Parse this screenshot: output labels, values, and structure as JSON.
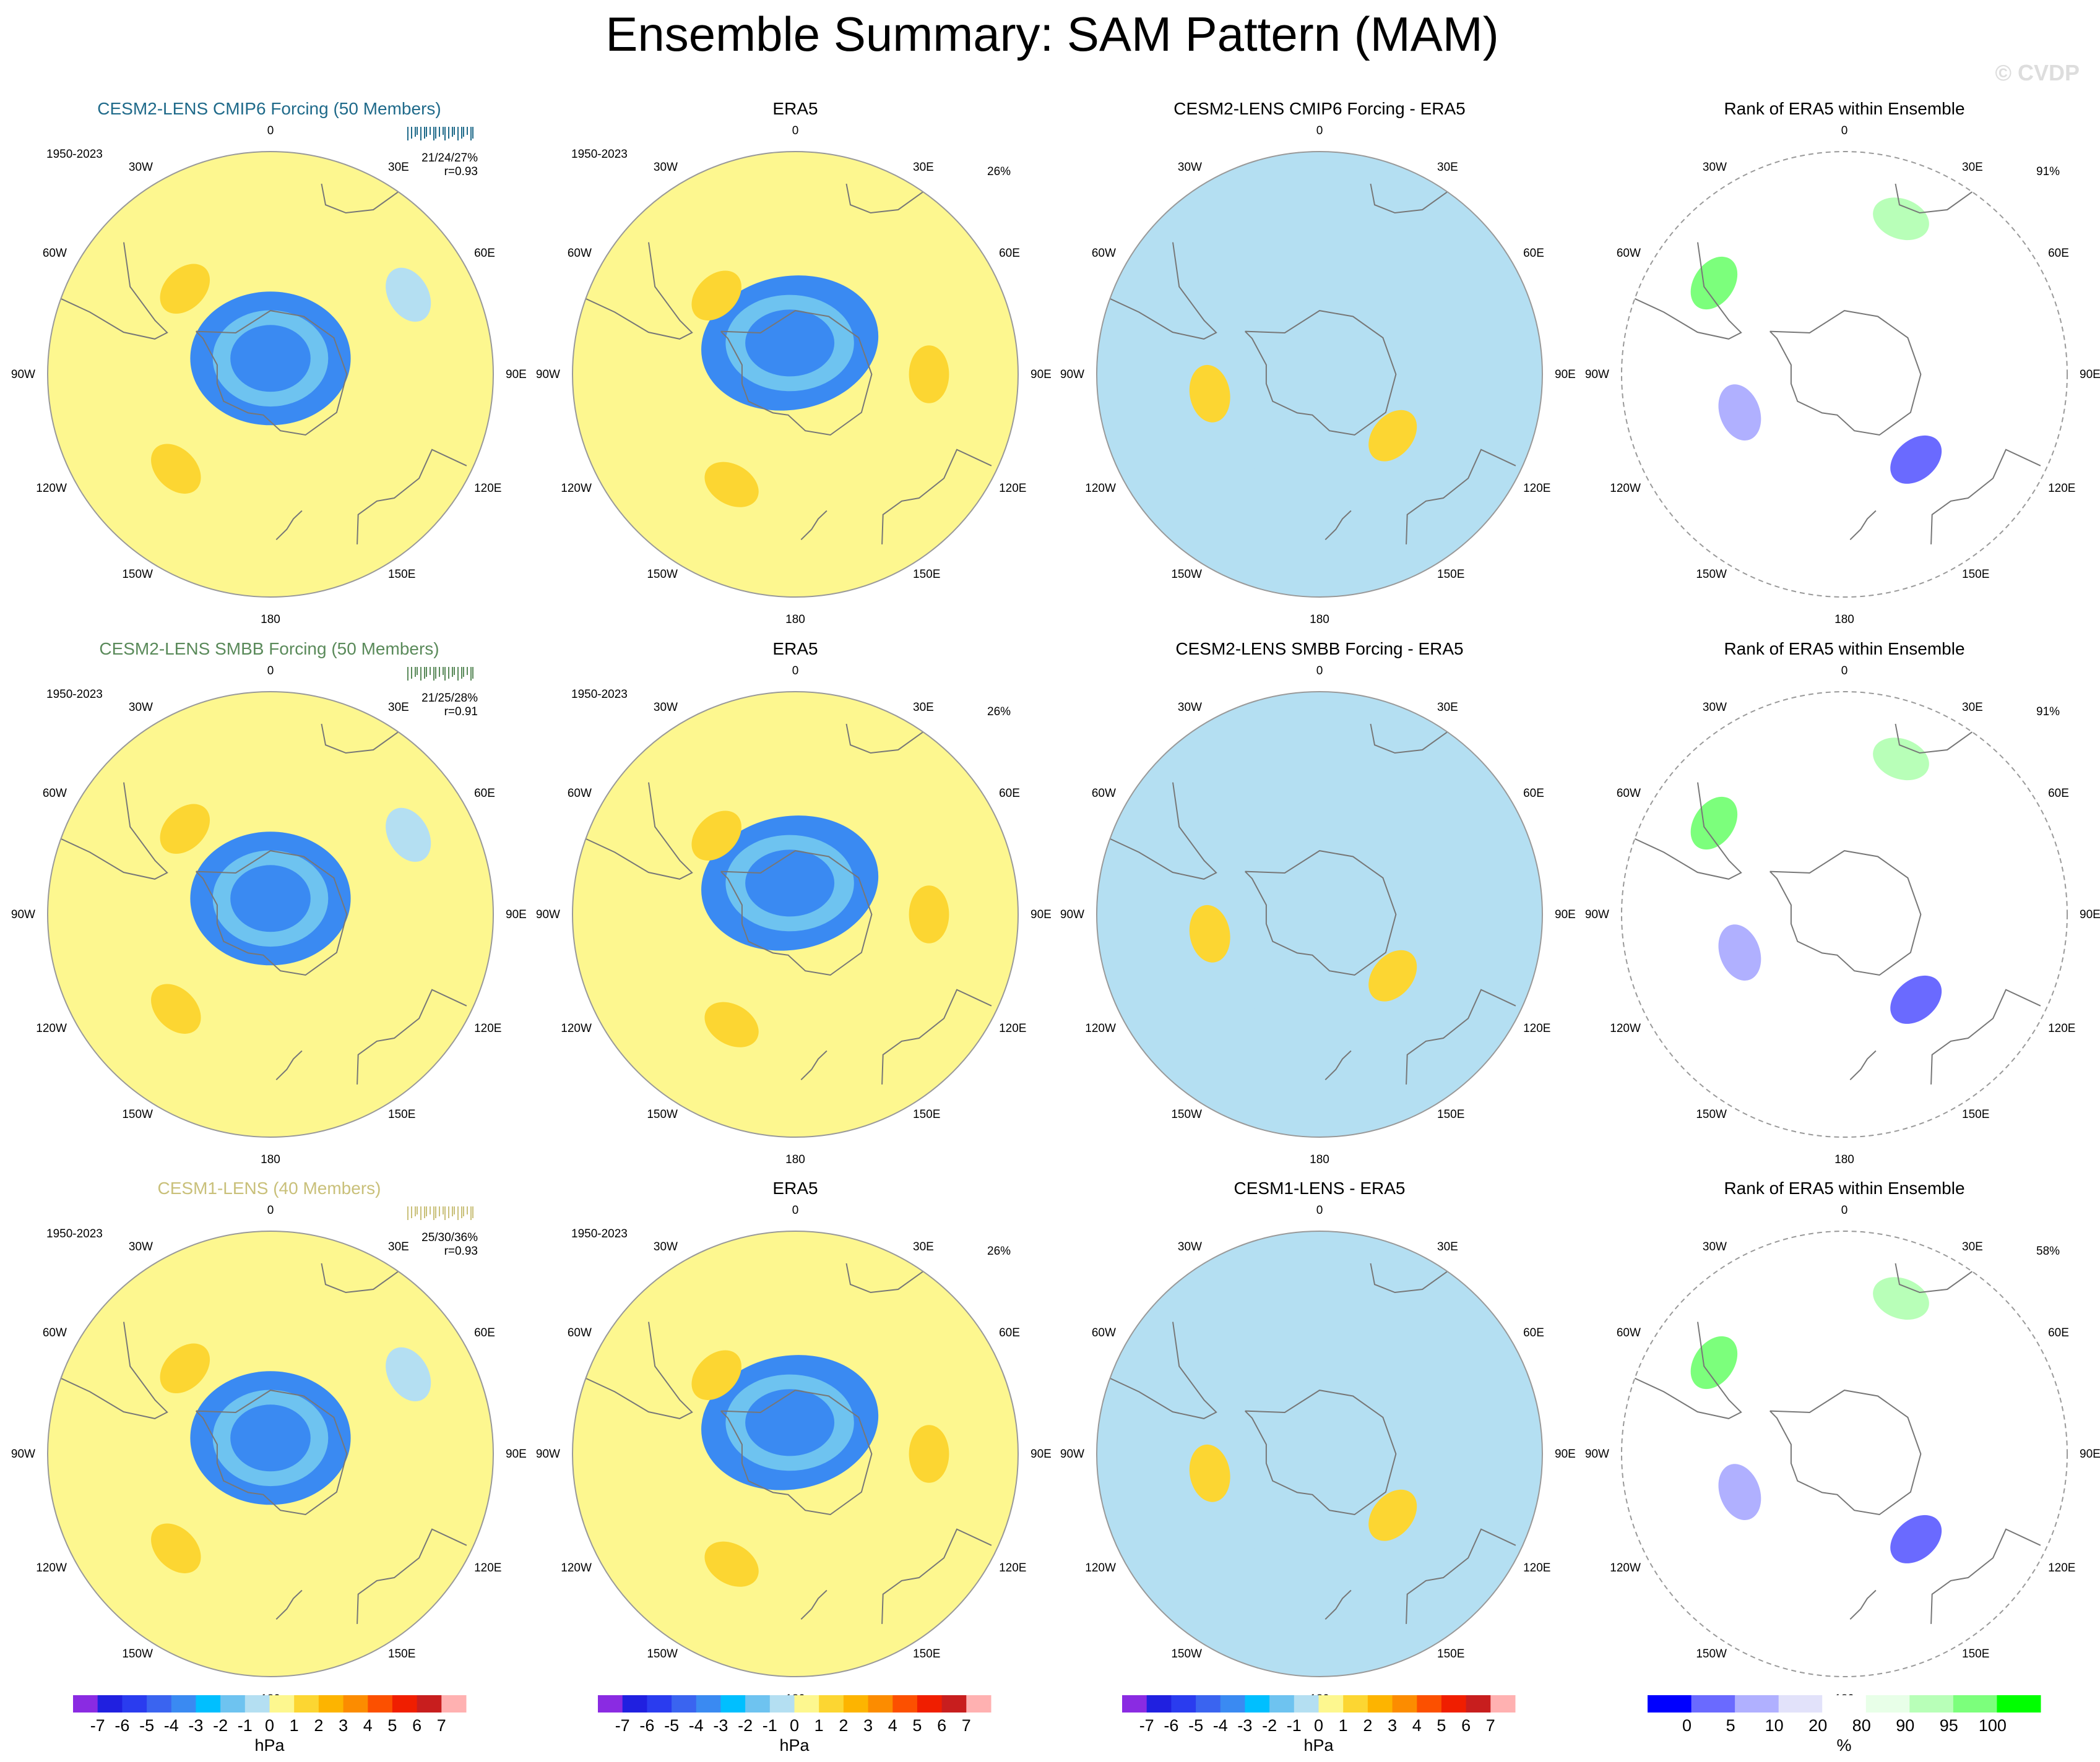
{
  "title": "Ensemble Summary: SAM Pattern (MAM)",
  "watermark": "© CVDP",
  "colors": {
    "neg": [
      "#8a2be2",
      "#2020e0",
      "#2a3cef",
      "#3a64f0",
      "#3a8af2",
      "#00bfff",
      "#6ec3f0",
      "#b4dff2"
    ],
    "pos": [
      "#fdf78f",
      "#fcd632",
      "#fdb400",
      "#fc8c00",
      "#fc5000",
      "#f01e00",
      "#c81e1e",
      "#ffb1b1"
    ],
    "rank": [
      "#0000ff",
      "#6a6aff",
      "#b0b0ff",
      "#e2e2fa",
      "#ffffff",
      "#e8ffe8",
      "#b8ffb8",
      "#7cff7c",
      "#00ff00"
    ],
    "model_title_colors": [
      "#1f6a8a",
      "#5a8a5a",
      "#c9c07a"
    ],
    "coast": "#777777",
    "circle": "#999999"
  },
  "panels": [
    {
      "row": 0,
      "col": 0,
      "kind": "field",
      "title": "CESM2-LENS CMIP6 Forcing (50 Members)",
      "period": "1950-2023",
      "stats": "21/24/27%",
      "corr": "r=0.93"
    },
    {
      "row": 0,
      "col": 1,
      "kind": "field",
      "title": "ERA5",
      "period": "1950-2023",
      "pct": "26%"
    },
    {
      "row": 0,
      "col": 2,
      "kind": "diff",
      "title": "CESM2-LENS CMIP6 Forcing - ERA5"
    },
    {
      "row": 0,
      "col": 3,
      "kind": "rank",
      "title": "Rank of ERA5 within Ensemble",
      "pct": "91%"
    },
    {
      "row": 1,
      "col": 0,
      "kind": "field",
      "title": "CESM2-LENS SMBB Forcing (50 Members)",
      "period": "1950-2023",
      "stats": "21/25/28%",
      "corr": "r=0.91"
    },
    {
      "row": 1,
      "col": 1,
      "kind": "field",
      "title": "ERA5",
      "period": "1950-2023",
      "pct": "26%"
    },
    {
      "row": 1,
      "col": 2,
      "kind": "diff",
      "title": "CESM2-LENS SMBB Forcing - ERA5"
    },
    {
      "row": 1,
      "col": 3,
      "kind": "rank",
      "title": "Rank of ERA5 within Ensemble",
      "pct": "91%"
    },
    {
      "row": 2,
      "col": 0,
      "kind": "field",
      "title": "CESM1-LENS (40 Members)",
      "period": "1950-2023",
      "stats": "25/30/36%",
      "corr": "r=0.93"
    },
    {
      "row": 2,
      "col": 1,
      "kind": "field",
      "title": "ERA5",
      "period": "1950-2023",
      "pct": "26%"
    },
    {
      "row": 2,
      "col": 2,
      "kind": "diff",
      "title": "CESM1-LENS - ERA5"
    },
    {
      "row": 2,
      "col": 3,
      "kind": "rank",
      "title": "Rank of ERA5 within Ensemble",
      "pct": "58%"
    }
  ],
  "lon_labels": [
    "0",
    "30E",
    "60E",
    "90E",
    "120E",
    "150E",
    "180",
    "150W",
    "120W",
    "90W",
    "60W",
    "30W"
  ],
  "colorbars": [
    {
      "labels": [
        "-7",
        "-6",
        "-5",
        "-4",
        "-3",
        "-2",
        "-1",
        "0",
        "1",
        "2",
        "3",
        "4",
        "5",
        "6",
        "7"
      ],
      "unit": "hPa"
    },
    {
      "labels": [
        "-7",
        "-6",
        "-5",
        "-4",
        "-3",
        "-2",
        "-1",
        "0",
        "1",
        "2",
        "3",
        "4",
        "5",
        "6",
        "7"
      ],
      "unit": "hPa"
    },
    {
      "labels": [
        "-7",
        "-6",
        "-5",
        "-4",
        "-3",
        "-2",
        "-1",
        "0",
        "1",
        "2",
        "3",
        "4",
        "5",
        "6",
        "7"
      ],
      "unit": "hPa"
    },
    {
      "labels": [
        "0",
        "5",
        "10",
        "20",
        "80",
        "90",
        "95",
        "100"
      ],
      "unit": "%"
    }
  ],
  "chart_data": {
    "type": "heatmap",
    "title": "Ensemble Summary: SAM Pattern (MAM)",
    "projection": "south polar stereographic",
    "units": "hPa",
    "contour_levels": [
      -7,
      -6,
      -5,
      -4,
      -3,
      -2,
      -1,
      0,
      1,
      2,
      3,
      4,
      5,
      6,
      7
    ],
    "rank_levels_percent": [
      0,
      5,
      10,
      20,
      80,
      90,
      95,
      100
    ],
    "rows": [
      {
        "model": "CESM2-LENS CMIP6 Forcing",
        "members": 50,
        "pct_explained_min_mean_max": [
          21,
          24,
          27
        ],
        "pattern_corr": 0.93,
        "era5_pct": 26,
        "rank_era5_area_pct": 91
      },
      {
        "model": "CESM2-LENS SMBB Forcing",
        "members": 50,
        "pct_explained_min_mean_max": [
          21,
          25,
          28
        ],
        "pattern_corr": 0.91,
        "era5_pct": 26,
        "rank_era5_area_pct": 91
      },
      {
        "model": "CESM1-LENS",
        "members": 40,
        "pct_explained_min_mean_max": [
          25,
          30,
          36
        ],
        "pattern_corr": 0.93,
        "era5_pct": 26,
        "rank_era5_area_pct": 58
      }
    ],
    "features": {
      "field_model": [
        {
          "lon": 0,
          "lat": -85,
          "value": -4,
          "major": 0.36,
          "minor": 0.3
        },
        {
          "lon": -135,
          "lat": -48,
          "value": 1.5
        },
        {
          "lon": -45,
          "lat": -52,
          "value": 1.5
        },
        {
          "lon": 60,
          "lat": -40,
          "value": -1
        }
      ],
      "field_era5": [
        {
          "lon": -10,
          "lat": -80,
          "value": -4,
          "major": 0.4,
          "minor": 0.3
        },
        {
          "lon": 90,
          "lat": -48,
          "value": 1.5
        },
        {
          "lon": -150,
          "lat": -50,
          "value": 1.5
        },
        {
          "lon": -45,
          "lat": -55,
          "value": 1.5
        }
      ],
      "diff": [
        {
          "lon": -150,
          "lat": -60,
          "value": -1
        },
        {
          "lon": 70,
          "lat": -45,
          "value": -1
        },
        {
          "lon": -100,
          "lat": -55,
          "value": 1.5
        },
        {
          "lon": 130,
          "lat": -60,
          "value": 1.5
        }
      ],
      "rank": [
        {
          "lon": 140,
          "lat": -55,
          "value_percent": 2
        },
        {
          "lon": -110,
          "lat": -55,
          "value_percent": 5
        },
        {
          "lon": -55,
          "lat": -40,
          "value_percent": 99
        },
        {
          "lon": 20,
          "lat": -38,
          "value_percent": 92
        }
      ]
    }
  }
}
